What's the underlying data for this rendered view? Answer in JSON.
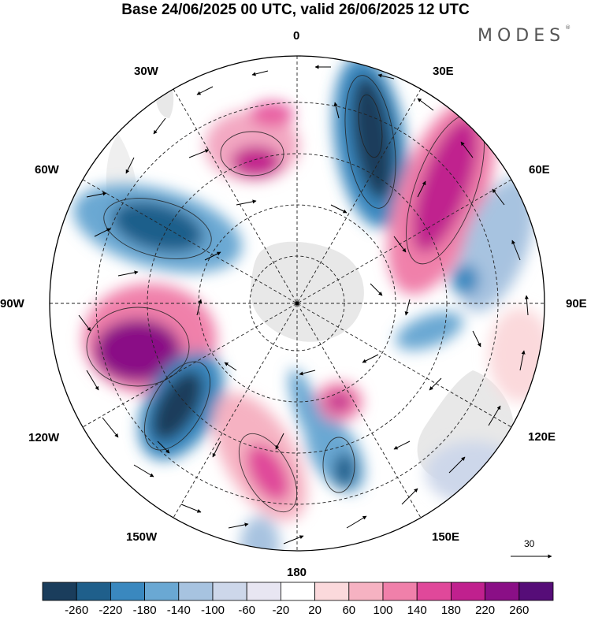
{
  "title": "Base 24/06/2025 00 UTC, valid 26/06/2025 12 UTC",
  "brand": "MODES",
  "brand_mark": "®",
  "longitude_labels": {
    "lon_0": "0",
    "lon_30e": "30E",
    "lon_60e": "60E",
    "lon_90e": "90E",
    "lon_120e": "120E",
    "lon_150e": "150E",
    "lon_180": "180",
    "lon_150w": "150W",
    "lon_120w": "120W",
    "lon_90w": "90W",
    "lon_60w": "60W",
    "lon_30w": "30W"
  },
  "reference_vector": {
    "label": "30"
  },
  "colorbar": {
    "colors": [
      "#1a3d5c",
      "#1f5f8b",
      "#3a88bf",
      "#6aa8d3",
      "#a7c3e0",
      "#cdd7ea",
      "#e8e6f2",
      "#ffffff",
      "#fbd9dc",
      "#f6b2c2",
      "#f080aa",
      "#e0489a",
      "#c0208e",
      "#8a0f86",
      "#560d78"
    ],
    "labels": [
      "-260",
      "-220",
      "-180",
      "-140",
      "-100",
      "-60",
      "-20",
      "20",
      "60",
      "100",
      "140",
      "180",
      "220",
      "260"
    ]
  },
  "colors": {
    "land": "#e6e6e6",
    "grid": "#222222",
    "frame": "#000000"
  }
}
